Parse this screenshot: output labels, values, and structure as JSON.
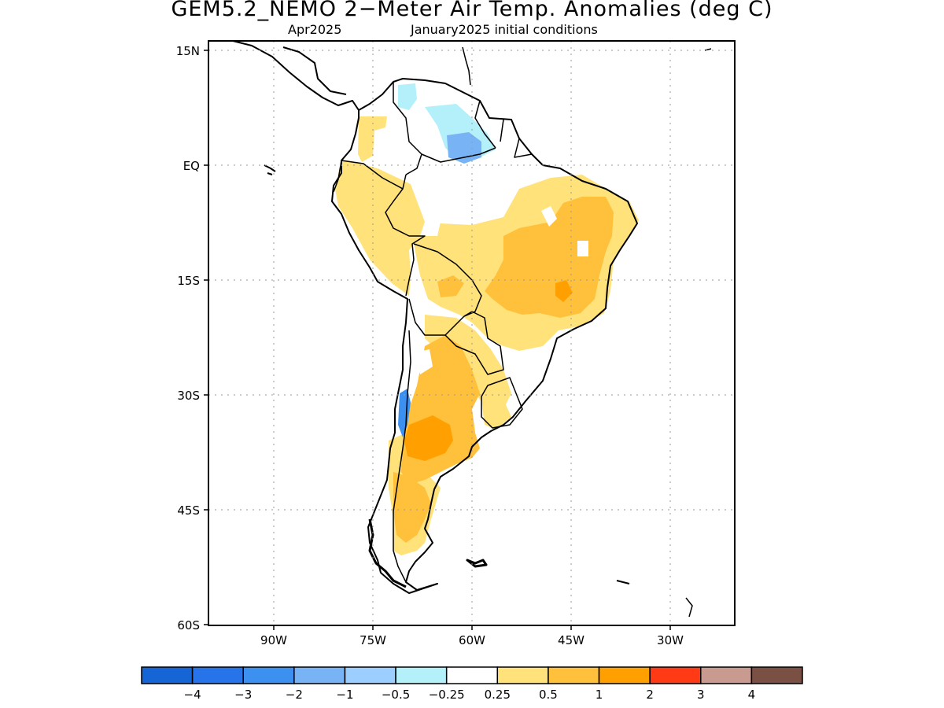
{
  "header": {
    "title": "GEM5.2_NEMO 2−Meter Air Temp. Anomalies (deg C)",
    "valid_month": "Apr2025",
    "initial_conditions": "January2025 initial conditions"
  },
  "map": {
    "region": "South America",
    "lat_labels": [
      "15N",
      "EQ",
      "15S",
      "30S",
      "45S",
      "60S"
    ],
    "lon_labels": [
      "90W",
      "75W",
      "60W",
      "45W",
      "30W"
    ],
    "lat_values": [
      15,
      0,
      -15,
      -30,
      -45,
      -60
    ],
    "lon_values": [
      -90,
      -75,
      -60,
      -45,
      -30
    ],
    "grid": "dotted"
  },
  "colorbar": {
    "tick_labels": [
      "−4",
      "−3",
      "−2",
      "−1",
      "−0.5",
      "−0.25",
      "0.25",
      "0.5",
      "1",
      "2",
      "3",
      "4"
    ],
    "colors": [
      "#1565d6",
      "#2673ea",
      "#3c91f0",
      "#78b4f5",
      "#9cceff",
      "#b4f0fa",
      "#ffffff",
      "#ffe27a",
      "#ffc03c",
      "#ffa000",
      "#ff3a14",
      "#c99a90",
      "#7a4f44"
    ]
  }
}
